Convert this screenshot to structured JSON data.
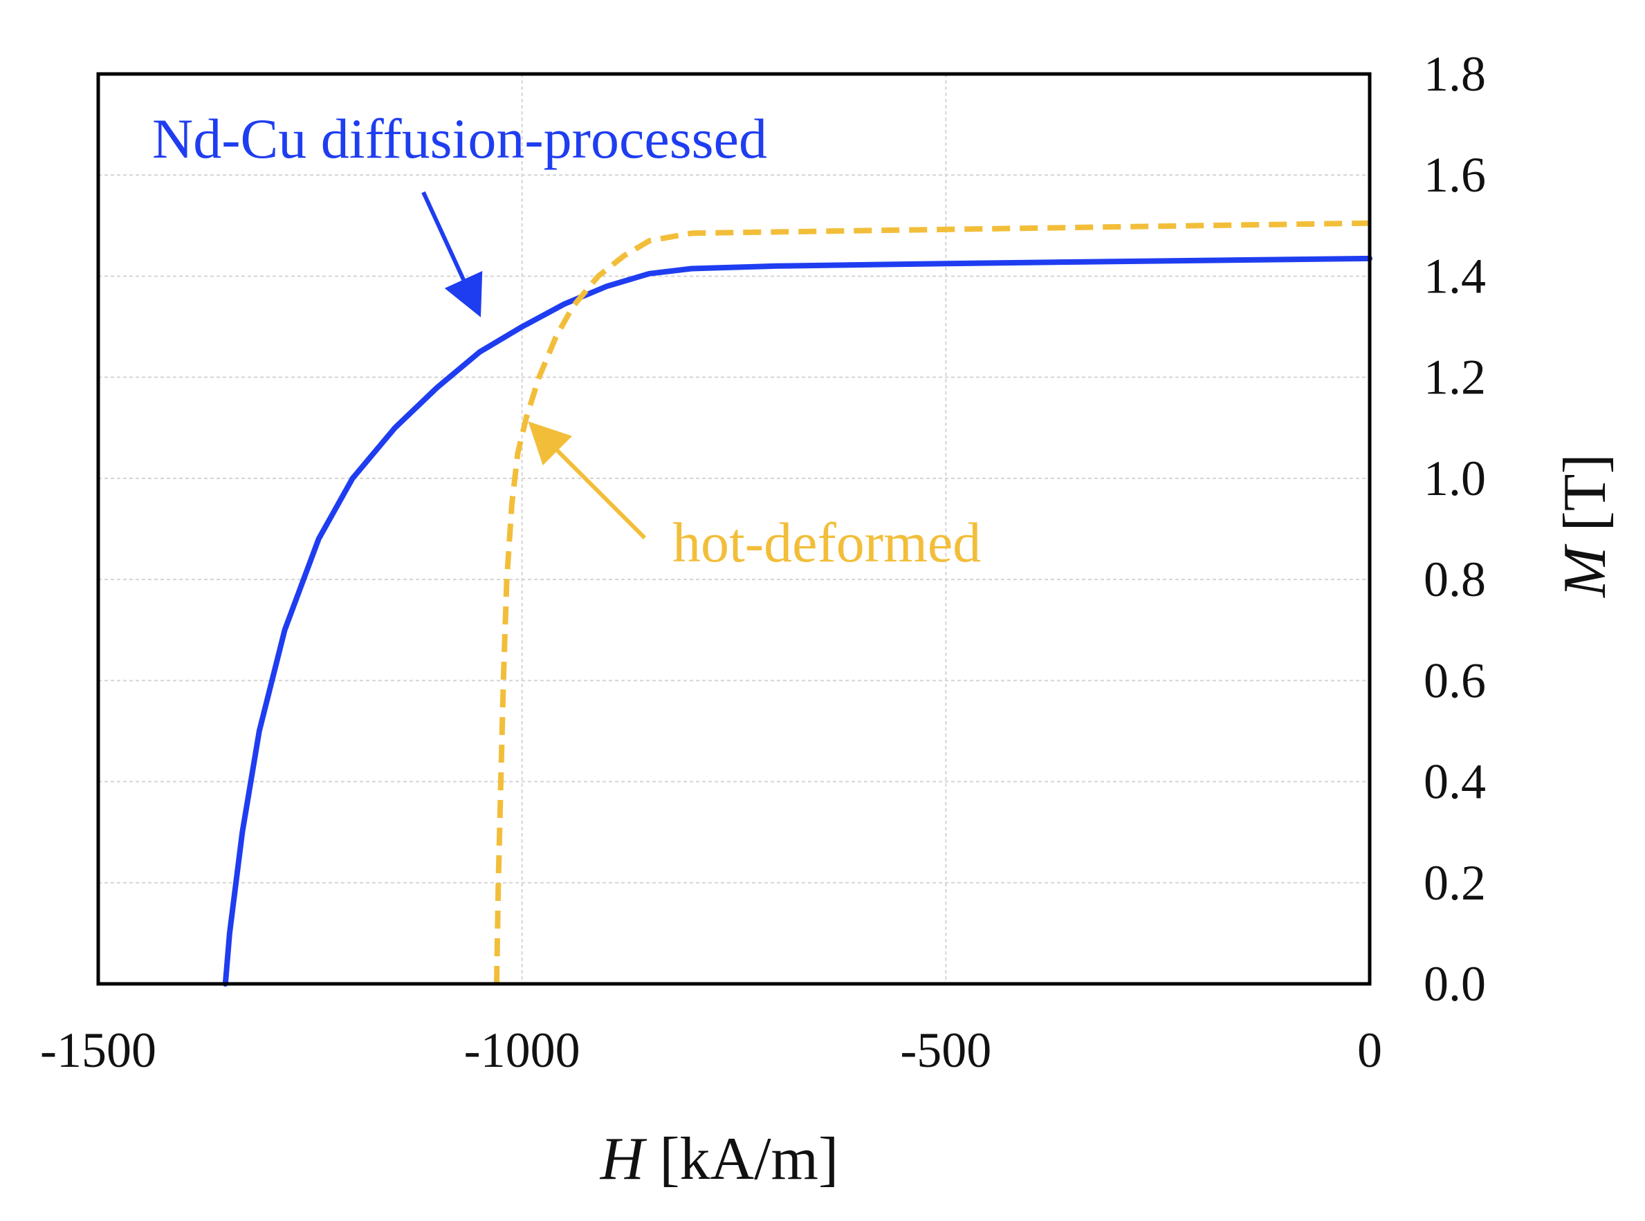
{
  "chart_data": {
    "type": "line",
    "title": "",
    "x_axis": {
      "symbol": "H",
      "unit": " [kA/m]",
      "range": [
        -1500,
        0
      ],
      "ticks": [
        -1500,
        -1000,
        -500,
        0
      ],
      "tick_labels": [
        "-1500",
        "-1000",
        "-500",
        "0"
      ],
      "grid": true
    },
    "y_axis": {
      "symbol": "M",
      "unit": " [T]",
      "position": "right",
      "range": [
        0.0,
        1.8
      ],
      "ticks": [
        0.0,
        0.2,
        0.4,
        0.6,
        0.8,
        1.0,
        1.2,
        1.4,
        1.6,
        1.8
      ],
      "tick_labels": [
        "0.0",
        "0.2",
        "0.4",
        "0.6",
        "0.8",
        "1.0",
        "1.2",
        "1.4",
        "1.6",
        "1.8"
      ],
      "grid": true
    },
    "series": [
      {
        "name": "Nd-Cu diffusion-processed",
        "color": "#1f3df0",
        "style": "solid",
        "x": [
          -1350,
          -1345,
          -1330,
          -1310,
          -1280,
          -1240,
          -1200,
          -1150,
          -1100,
          -1050,
          -1000,
          -950,
          -900,
          -850,
          -800,
          -700,
          -500,
          -250,
          0
        ],
        "y": [
          0.0,
          0.1,
          0.3,
          0.5,
          0.7,
          0.88,
          1.0,
          1.1,
          1.18,
          1.25,
          1.3,
          1.345,
          1.38,
          1.405,
          1.415,
          1.42,
          1.425,
          1.43,
          1.435
        ]
      },
      {
        "name": "hot-deformed",
        "color": "#f2be3a",
        "style": "dashed",
        "x": [
          -1030,
          -1028,
          -1025,
          -1022,
          -1018,
          -1012,
          -1005,
          -995,
          -980,
          -960,
          -940,
          -910,
          -880,
          -850,
          -800,
          -600,
          -400,
          -200,
          0
        ],
        "y": [
          0.0,
          0.2,
          0.4,
          0.6,
          0.8,
          0.95,
          1.05,
          1.12,
          1.2,
          1.28,
          1.34,
          1.4,
          1.44,
          1.47,
          1.485,
          1.49,
          1.495,
          1.5,
          1.505
        ]
      }
    ],
    "annotations": [
      {
        "text": "Nd-Cu diffusion-processed",
        "color": "#1f3df0",
        "arrow_to": [
          -1050,
          1.3
        ]
      },
      {
        "text": "hot-deformed",
        "color": "#f2be3a",
        "arrow_to": [
          -1000,
          1.1
        ]
      }
    ]
  }
}
